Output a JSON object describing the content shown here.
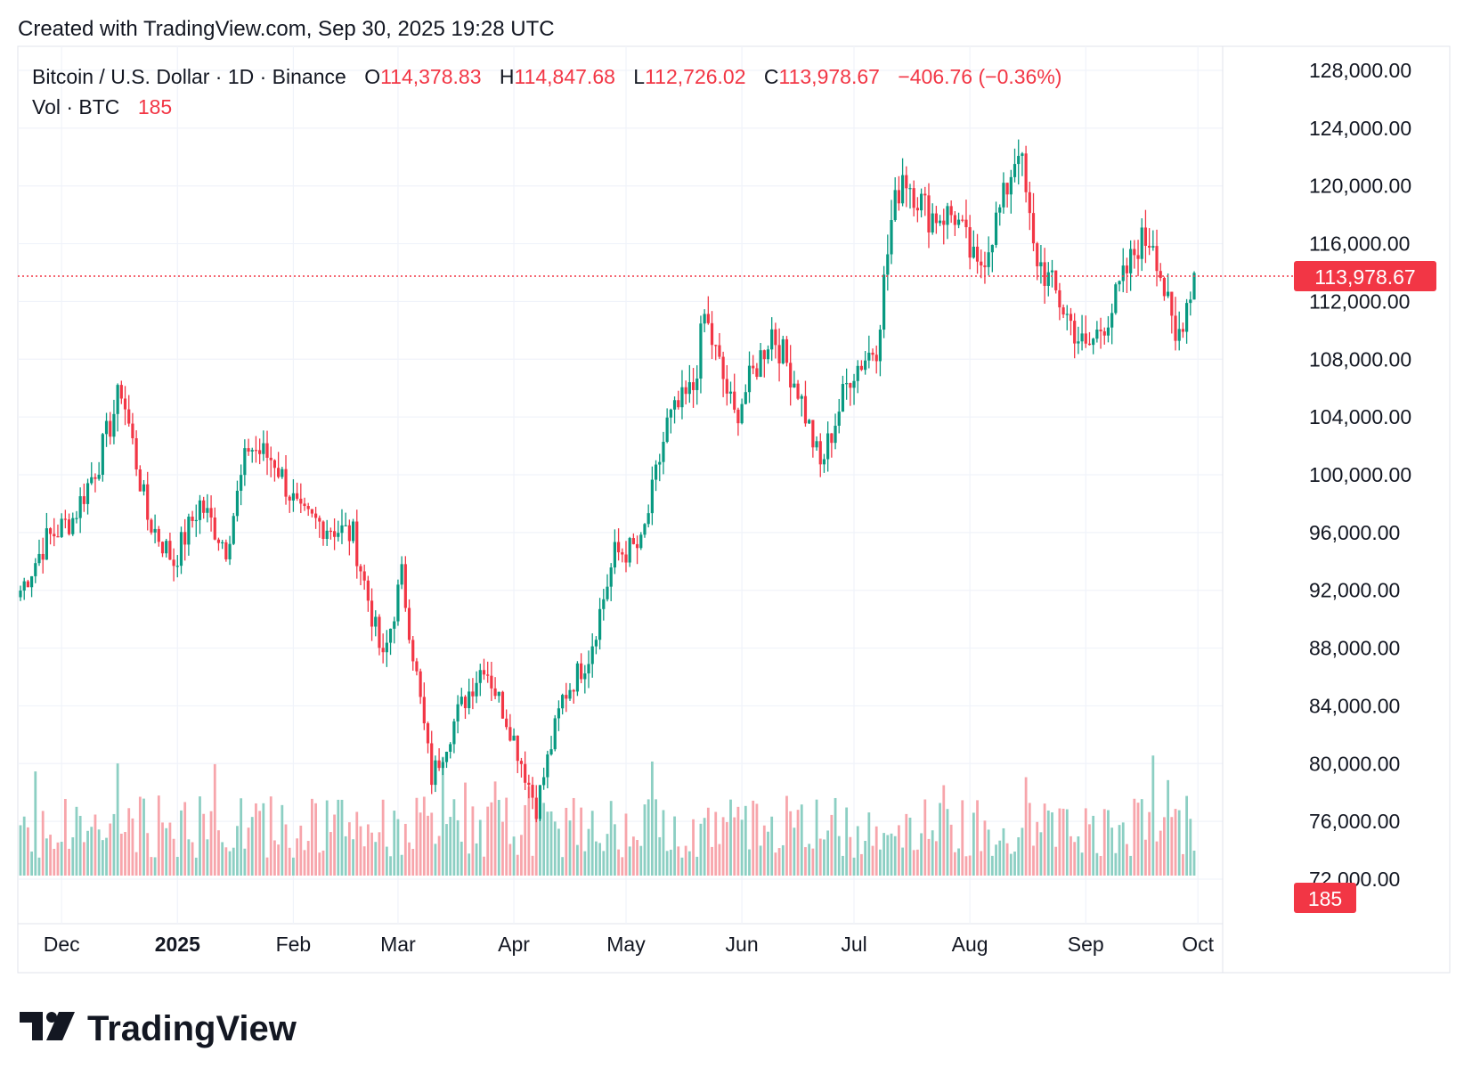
{
  "header": {
    "created_with": "Created with TradingView.com, Sep 30, 2025 19:28 UTC"
  },
  "legend": {
    "symbol": "Bitcoin / U.S. Dollar · 1D · Binance",
    "open_label": "O",
    "open": "114,378.83",
    "high_label": "H",
    "high": "114,847.68",
    "low_label": "L",
    "low": "112,726.02",
    "close_label": "C",
    "close": "113,978.67",
    "change": "−406.76 (−0.36%)",
    "vol_label": "Vol · BTC",
    "vol_value": "185"
  },
  "colors": {
    "up": "#089981",
    "down": "#f23645",
    "up_vol": "#8ccfc3",
    "down_vol": "#f7a5ab",
    "grid": "#f0f3fa",
    "text": "#131722"
  },
  "price_badge": "113,978.67",
  "volume_badge": "185",
  "brand": {
    "name": "TradingView",
    "logo_icon": "tradingview-logo-icon"
  },
  "chart_data": {
    "type": "candlestick",
    "title": "Bitcoin / U.S. Dollar · 1D · Binance",
    "interval": "1D",
    "last_close": 113978.67,
    "y_ticks": [
      "128,000.00",
      "124,000.00",
      "120,000.00",
      "116,000.00",
      "112,000.00",
      "108,000.00",
      "104,000.00",
      "100,000.00",
      "96,000.00",
      "92,000.00",
      "88,000.00",
      "84,000.00",
      "80,000.00",
      "76,000.00",
      "72,000.00"
    ],
    "ylim": [
      72000,
      128000
    ],
    "x_ticks": [
      "Dec",
      "2025",
      "Feb",
      "Mar",
      "Apr",
      "May",
      "Jun",
      "Jul",
      "Aug",
      "Sep",
      "Oct"
    ],
    "approx_daily_close": [
      [
        "2024-11-20",
        92000
      ],
      [
        "2024-11-27",
        95500
      ],
      [
        "2024-12-04",
        97000
      ],
      [
        "2024-12-11",
        101000
      ],
      [
        "2024-12-17",
        106000
      ],
      [
        "2024-12-24",
        97000
      ],
      [
        "2024-12-31",
        94000
      ],
      [
        "2025-01-07",
        98000
      ],
      [
        "2025-01-14",
        95000
      ],
      [
        "2025-01-20",
        102000
      ],
      [
        "2025-01-27",
        101000
      ],
      [
        "2025-02-03",
        97000
      ],
      [
        "2025-02-10",
        96500
      ],
      [
        "2025-02-17",
        95800
      ],
      [
        "2025-02-25",
        87000
      ],
      [
        "2025-03-02",
        93000
      ],
      [
        "2025-03-10",
        79000
      ],
      [
        "2025-03-17",
        83500
      ],
      [
        "2025-03-24",
        87000
      ],
      [
        "2025-03-31",
        82500
      ],
      [
        "2025-04-07",
        77000
      ],
      [
        "2025-04-14",
        84500
      ],
      [
        "2025-04-21",
        87500
      ],
      [
        "2025-04-28",
        94500
      ],
      [
        "2025-05-05",
        95000
      ],
      [
        "2025-05-12",
        103500
      ],
      [
        "2025-05-19",
        106000
      ],
      [
        "2025-05-22",
        111000
      ],
      [
        "2025-05-30",
        104000
      ],
      [
        "2025-06-09",
        110000
      ],
      [
        "2025-06-16",
        106000
      ],
      [
        "2025-06-22",
        100500
      ],
      [
        "2025-06-30",
        107000
      ],
      [
        "2025-07-07",
        109000
      ],
      [
        "2025-07-11",
        117500
      ],
      [
        "2025-07-14",
        121000
      ],
      [
        "2025-07-21",
        118000
      ],
      [
        "2025-07-28",
        118000
      ],
      [
        "2025-08-03",
        114000
      ],
      [
        "2025-08-10",
        119000
      ],
      [
        "2025-08-14",
        123000
      ],
      [
        "2025-08-18",
        115500
      ],
      [
        "2025-08-25",
        112000
      ],
      [
        "2025-09-01",
        108500
      ],
      [
        "2025-09-08",
        111500
      ],
      [
        "2025-09-15",
        116000
      ],
      [
        "2025-09-19",
        116500
      ],
      [
        "2025-09-25",
        109000
      ],
      [
        "2025-09-30",
        113978.67
      ]
    ]
  }
}
